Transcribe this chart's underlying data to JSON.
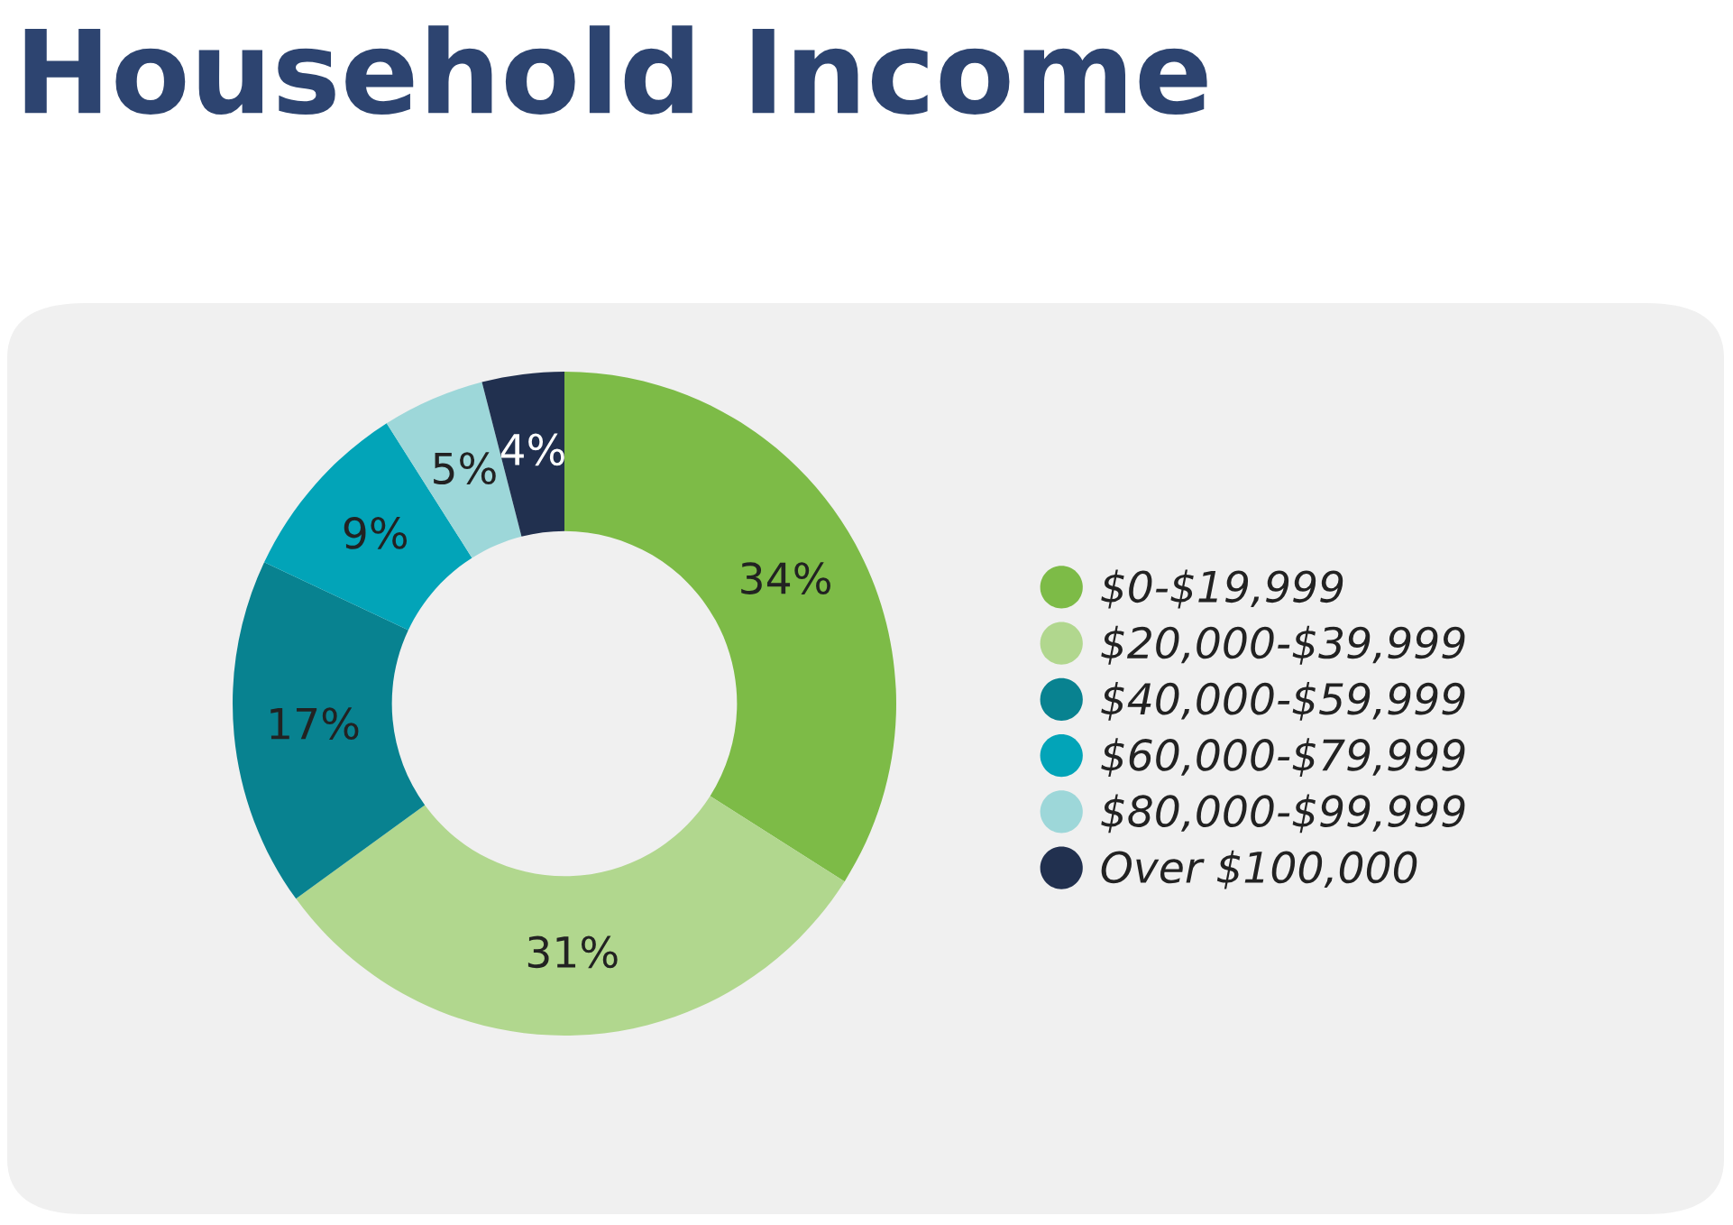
{
  "chart_data": {
    "type": "donut",
    "title": "Household Income",
    "categories": [
      "$0-$19,999",
      "$20,000-$39,999",
      "$40,000-$59,999",
      "$60,000-$79,999",
      "$80,000-$99,999",
      "Over $100,000"
    ],
    "values": [
      34,
      31,
      17,
      9,
      5,
      4
    ],
    "colors": [
      "#7dbb47",
      "#b1d78e",
      "#088290",
      "#02a4b8",
      "#9dd7d9",
      "#21304f"
    ],
    "value_labels": [
      "34%",
      "31%",
      "17%",
      "9%",
      "5%",
      "4%"
    ],
    "legend": "right"
  }
}
